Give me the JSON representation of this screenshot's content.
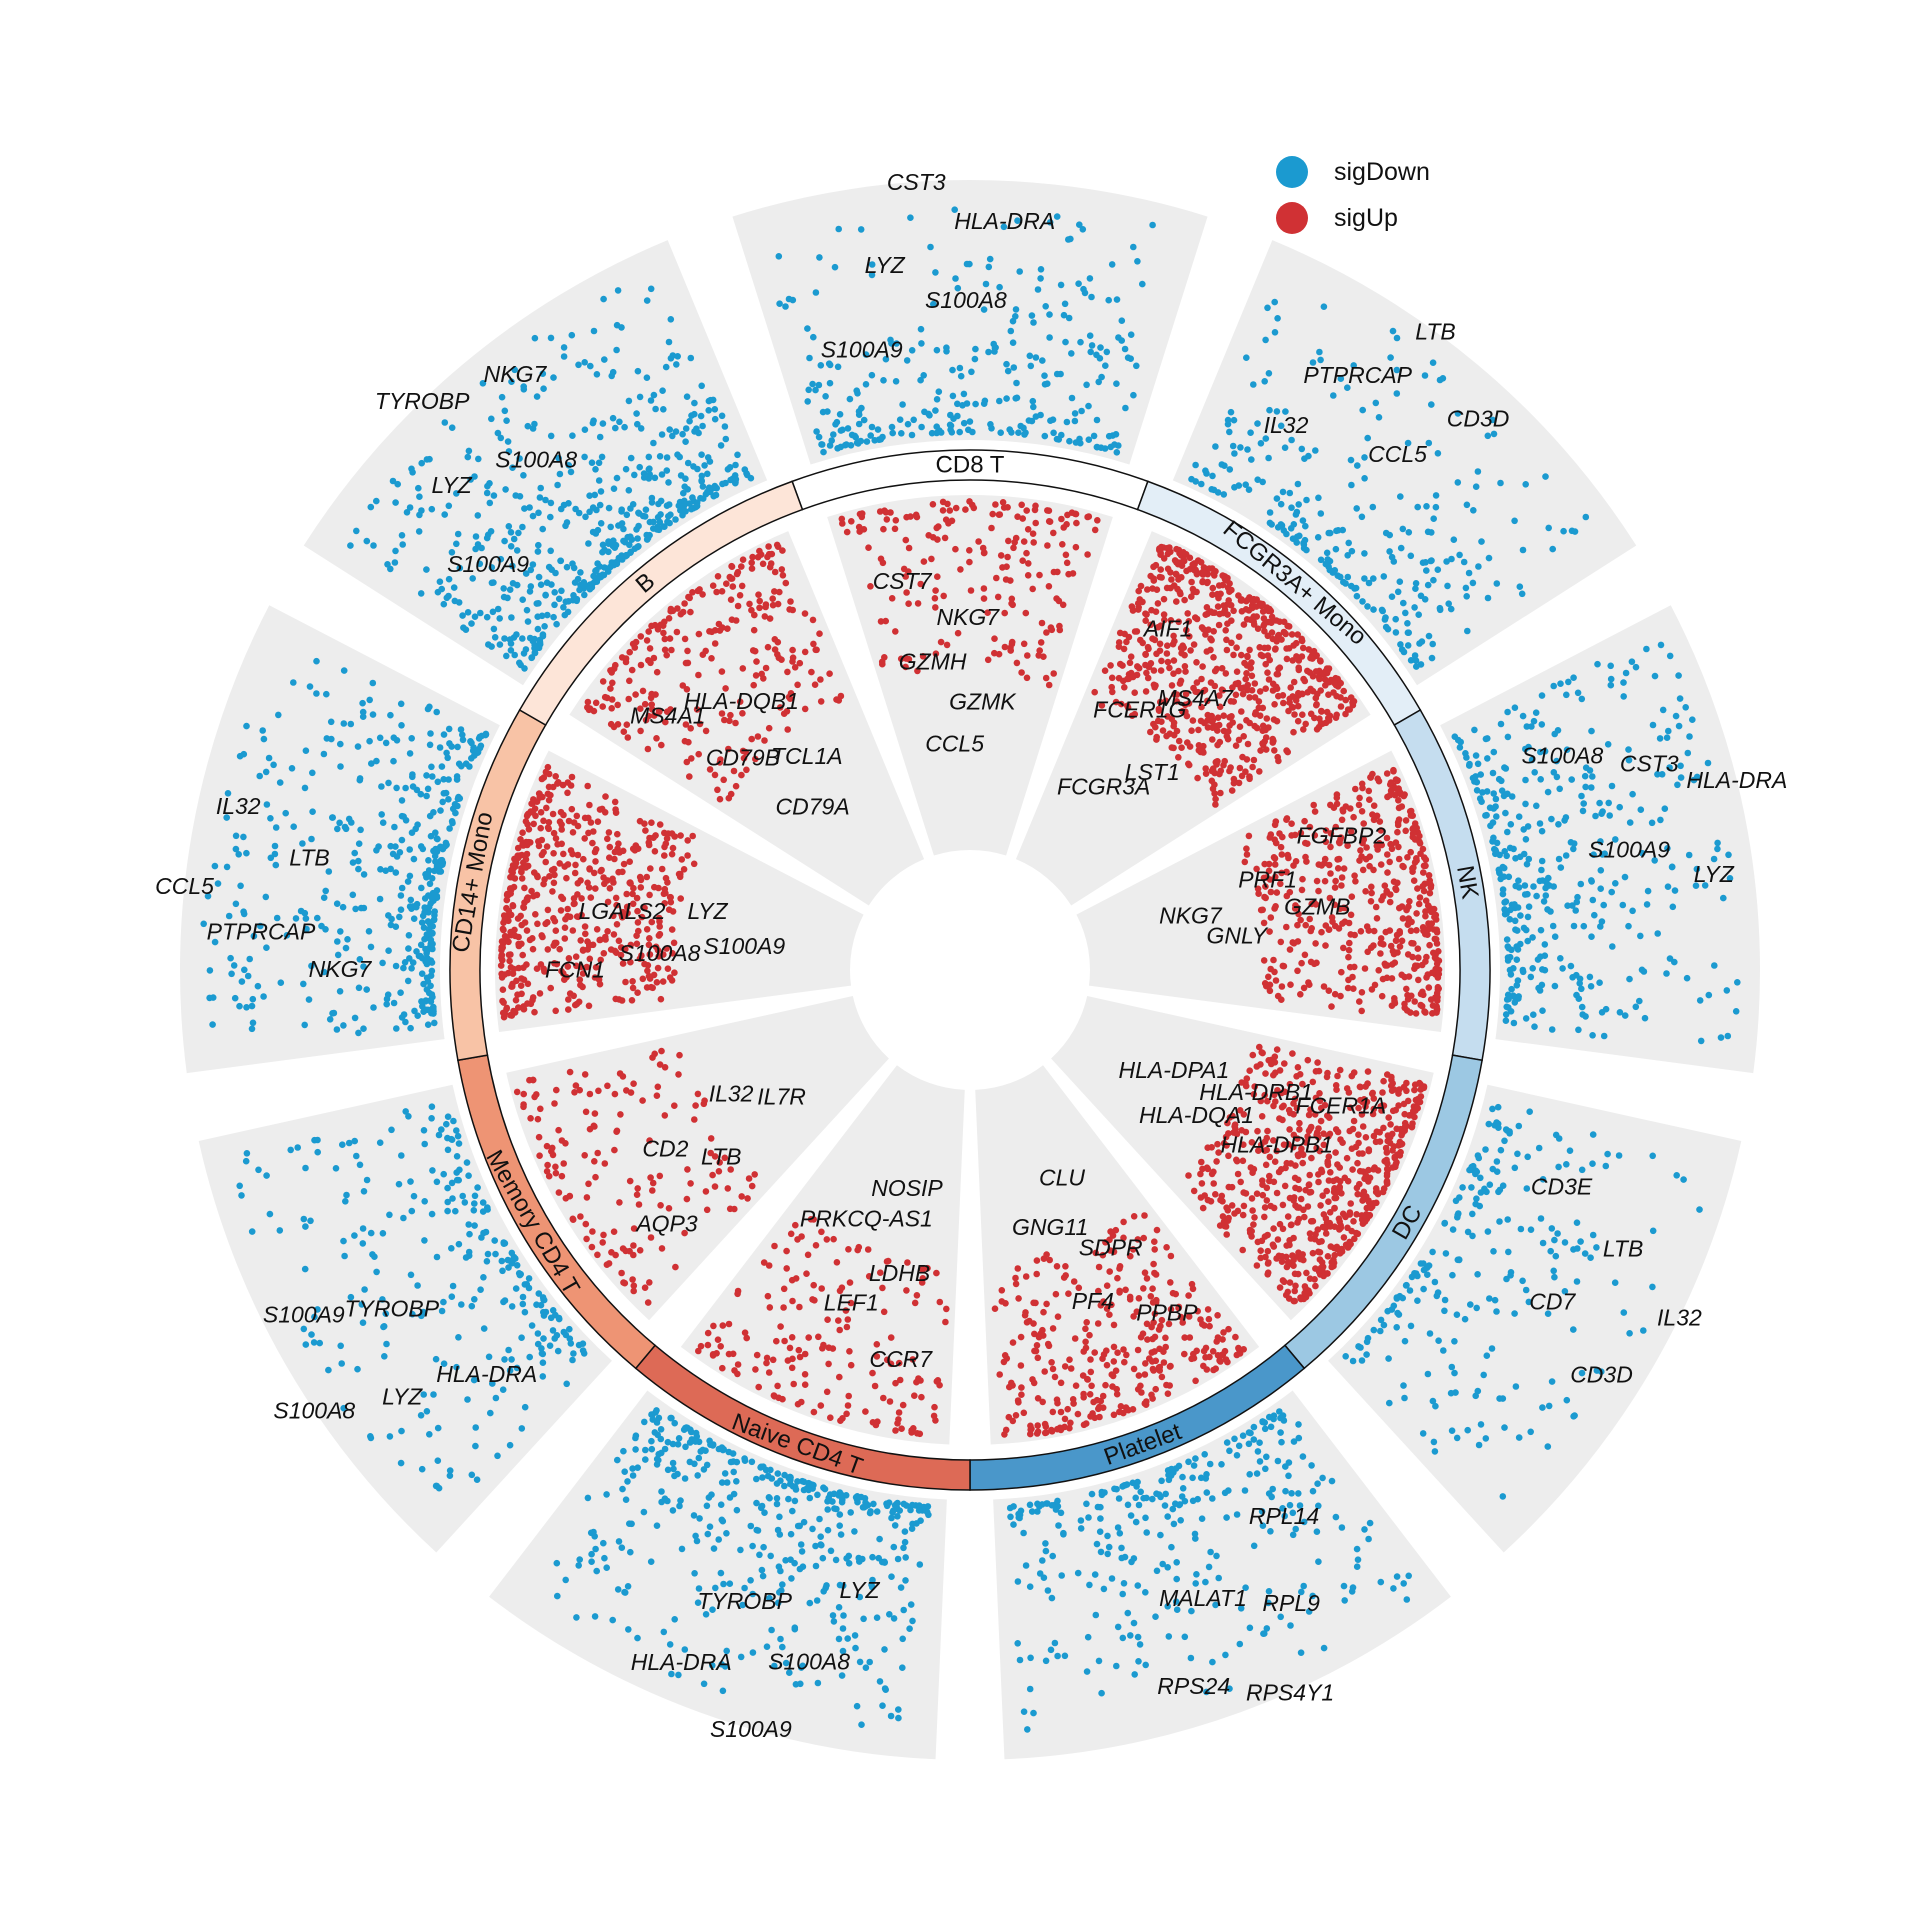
{
  "chart_data": {
    "type": "scatter",
    "layout": "circular",
    "title": "",
    "legend": {
      "placement": "top-right",
      "entries": [
        {
          "name": "sigDown",
          "color": "#1B9AD0"
        },
        {
          "name": "sigUp",
          "color": "#D03134"
        }
      ]
    },
    "panel_color": "#EDEDED",
    "clusters": [
      {
        "name": "CD8 T",
        "ring_color": "#FFFFFF",
        "n_up": 190,
        "n_down": 280,
        "up_genes": [
          "CST7",
          "NKG7",
          "GZMH",
          "GZMK",
          "CCL5"
        ],
        "down_genes": [
          "S100A9",
          "S100A8",
          "LYZ",
          "HLA-DRA",
          "CST3"
        ]
      },
      {
        "name": "FCGR3A+ Mono",
        "ring_color": "#E3EEF7",
        "n_up": 650,
        "n_down": 260,
        "up_genes": [
          "AIF1",
          "MS4A7",
          "FCER1G",
          "LST1",
          "FCGR3A"
        ],
        "down_genes": [
          "IL32",
          "CCL5",
          "PTPRCAP",
          "CD3D",
          "LTB"
        ]
      },
      {
        "name": "NK",
        "ring_color": "#C5DDEF",
        "n_up": 480,
        "n_down": 380,
        "up_genes": [
          "FGFBP2",
          "GZMB",
          "PRF1",
          "GNLY",
          "NKG7"
        ],
        "down_genes": [
          "S100A8",
          "S100A9",
          "CST3",
          "LYZ",
          "HLA-DRA"
        ]
      },
      {
        "name": "DC",
        "ring_color": "#9CC8E3",
        "n_up": 600,
        "n_down": 220,
        "up_genes": [
          "FCER1A",
          "HLA-DPB1",
          "HLA-DRB1",
          "HLA-DQA1",
          "HLA-DPA1"
        ],
        "down_genes": [
          "CD3E",
          "CD7",
          "LTB",
          "CD3D",
          "IL32"
        ]
      },
      {
        "name": "Platelet",
        "ring_color": "#4A97CA",
        "n_up": 320,
        "n_down": 300,
        "up_genes": [
          "PPBP",
          "PF4",
          "SDPR",
          "GNG11",
          "CLU"
        ],
        "down_genes": [
          "RPL14",
          "MALAT1",
          "RPL9",
          "RPS24",
          "RPS4Y1"
        ]
      },
      {
        "name": "Naive CD4 T",
        "ring_color": "#DD6A56",
        "n_up": 170,
        "n_down": 420,
        "up_genes": [
          "CCR7",
          "LEF1",
          "LDHB",
          "PRKCQ-AS1",
          "NOSIP"
        ],
        "down_genes": [
          "LYZ",
          "TYROBP",
          "S100A8",
          "HLA-DRA",
          "S100A9"
        ]
      },
      {
        "name": "Memory CD4 T",
        "ring_color": "#EE9474",
        "n_up": 150,
        "n_down": 260,
        "up_genes": [
          "AQP3",
          "CD2",
          "LTB",
          "IL32",
          "IL7R"
        ],
        "down_genes": [
          "HLA-DRA",
          "TYROBP",
          "LYZ",
          "S100A9",
          "S100A8"
        ]
      },
      {
        "name": "CD14+ Mono",
        "ring_color": "#F8C3A6",
        "n_up": 520,
        "n_down": 420,
        "up_genes": [
          "FCN1",
          "LGALS2",
          "S100A8",
          "LYZ",
          "S100A9"
        ],
        "down_genes": [
          "NKG7",
          "LTB",
          "PTPRCAP",
          "IL32",
          "CCL5"
        ]
      },
      {
        "name": "B",
        "ring_color": "#FDE5D8",
        "n_up": 260,
        "n_down": 520,
        "up_genes": [
          "MS4A1",
          "HLA-DQB1",
          "CD79B",
          "TCL1A",
          "CD79A"
        ],
        "down_genes": [
          "S100A9",
          "S100A8",
          "LYZ",
          "NKG7",
          "TYROBP"
        ]
      }
    ]
  }
}
